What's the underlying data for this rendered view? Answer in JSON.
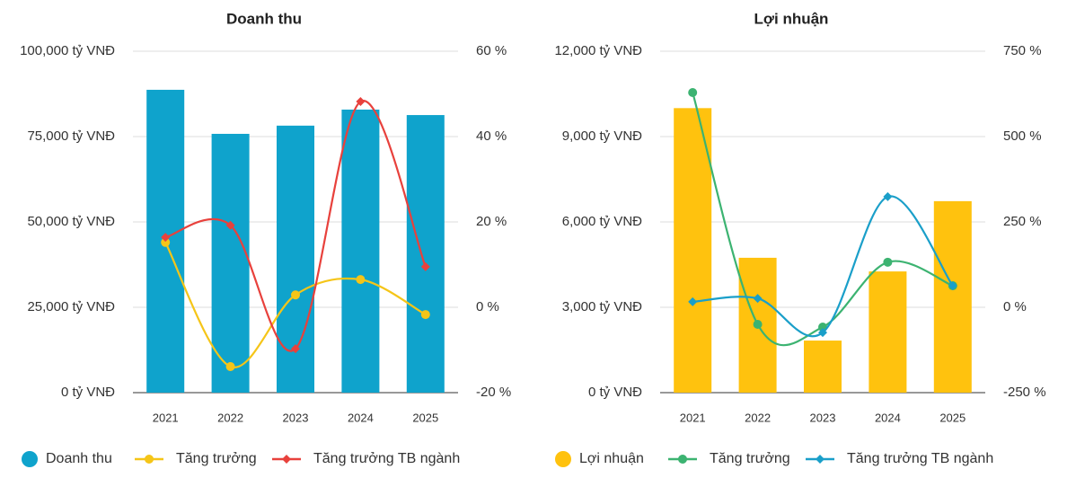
{
  "chart_data": [
    {
      "type": "bar",
      "title": "Doanh thu",
      "categories": [
        "2021",
        "2022",
        "2023",
        "2024",
        "2025"
      ],
      "series": [
        {
          "name": "Doanh thu",
          "type": "bar",
          "color": "#0fa3cc",
          "values": [
            88700,
            75800,
            78200,
            82900,
            81300
          ]
        },
        {
          "name": "Tăng trưởng",
          "type": "line",
          "marker": "circle",
          "color": "#f5c518",
          "axis": "y2",
          "values": [
            15.2,
            -13.9,
            2.9,
            6.5,
            -1.7
          ]
        },
        {
          "name": "Tăng trưởng TB ngành",
          "type": "line",
          "marker": "diamond",
          "color": "#e8413c",
          "axis": "y2",
          "values": [
            16.4,
            19.2,
            -9.7,
            48.2,
            9.5
          ]
        }
      ],
      "ylim": [
        0,
        100000
      ],
      "yticks": [
        {
          "value": 0,
          "label": "0 tỷ VNĐ"
        },
        {
          "value": 25000,
          "label": "25,000 tỷ VNĐ"
        },
        {
          "value": 50000,
          "label": "50,000 tỷ VNĐ"
        },
        {
          "value": 75000,
          "label": "75,000 tỷ VNĐ"
        },
        {
          "value": 100000,
          "label": "100,000 tỷ VNĐ"
        }
      ],
      "y2lim": [
        -20,
        60
      ],
      "y2ticks": [
        {
          "value": -20,
          "label": "-20 %"
        },
        {
          "value": 0,
          "label": "0 %"
        },
        {
          "value": 20,
          "label": "20 %"
        },
        {
          "value": 40,
          "label": "40 %"
        },
        {
          "value": 60,
          "label": "60 %"
        }
      ],
      "grid": true
    },
    {
      "type": "bar",
      "title": "Lợi nhuận",
      "categories": [
        "2021",
        "2022",
        "2023",
        "2024",
        "2025"
      ],
      "series": [
        {
          "name": "Lợi nhuận",
          "type": "bar",
          "color": "#ffc20e",
          "values": [
            10000,
            4740,
            1830,
            4260,
            6730
          ]
        },
        {
          "name": "Tăng trưởng",
          "type": "line",
          "marker": "circle",
          "color": "#3cb371",
          "axis": "y2",
          "values": [
            629,
            -50,
            -58,
            132,
            63
          ]
        },
        {
          "name": "Tăng trưởng TB ngành",
          "type": "line",
          "marker": "diamond",
          "color": "#1a9fc9",
          "axis": "y2",
          "values": [
            16,
            26,
            -74,
            324,
            63
          ]
        }
      ],
      "ylim": [
        0,
        12000
      ],
      "yticks": [
        {
          "value": 0,
          "label": "0 tỷ VNĐ"
        },
        {
          "value": 3000,
          "label": "3,000 tỷ VNĐ"
        },
        {
          "value": 6000,
          "label": "6,000 tỷ VNĐ"
        },
        {
          "value": 9000,
          "label": "9,000 tỷ VNĐ"
        },
        {
          "value": 12000,
          "label": "12,000 tỷ VNĐ"
        }
      ],
      "y2lim": [
        -250,
        750
      ],
      "y2ticks": [
        {
          "value": -250,
          "label": "-250 %"
        },
        {
          "value": 0,
          "label": "0 %"
        },
        {
          "value": 250,
          "label": "250 %"
        },
        {
          "value": 500,
          "label": "500 %"
        },
        {
          "value": 750,
          "label": "750 %"
        }
      ],
      "grid": true
    }
  ]
}
